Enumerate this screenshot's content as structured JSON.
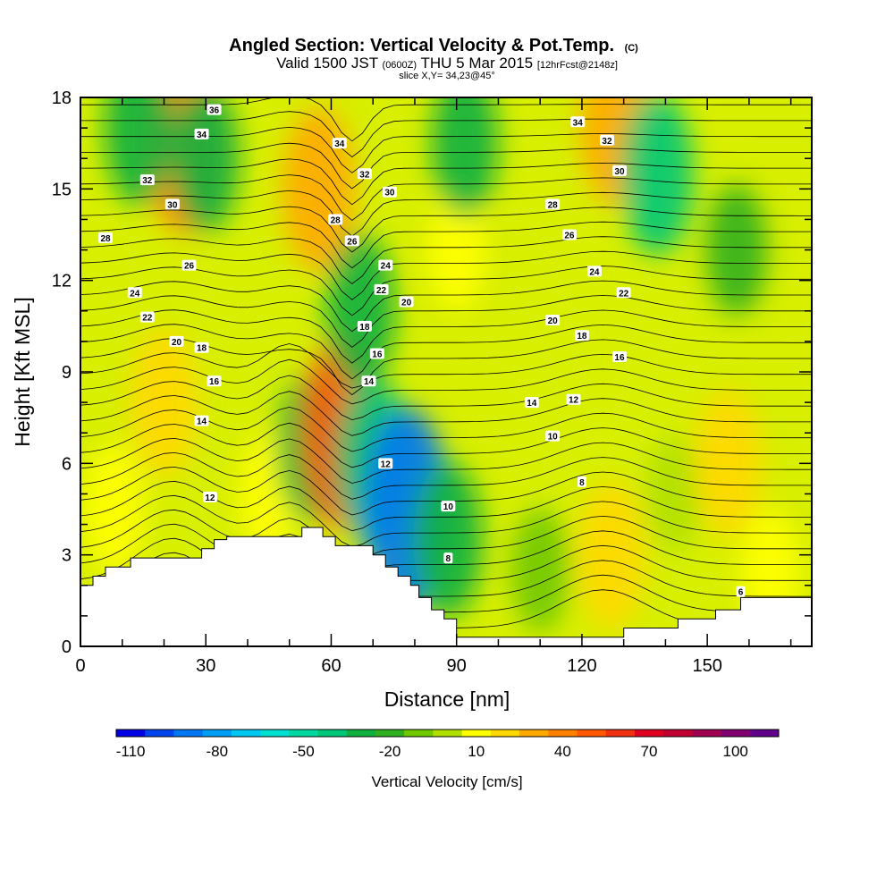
{
  "chart_data": {
    "type": "heatmap",
    "title": "Angled Section: Vertical Velocity & Pot.Temp.",
    "title_suffix": "(C)",
    "subtitle": {
      "part1": "Valid 1500 JST",
      "part2": "(0600Z)",
      "part3": "THU 5 Mar 2015",
      "part4": "[12hrFcst@2148z]"
    },
    "subtitle2": "slice X,Y= 34,23@45°",
    "xlabel": "Distance [nm]",
    "ylabel": "Height [Kft MSL]",
    "xlim": [
      0,
      175
    ],
    "ylim": [
      0,
      18
    ],
    "xticks": [
      0,
      30,
      60,
      90,
      120,
      150
    ],
    "yticks": [
      0,
      3,
      6,
      9,
      12,
      15,
      18
    ],
    "colorbar": {
      "label": "Vertical Velocity [cm/s]",
      "ticks": [
        "-110",
        "-80",
        "-50",
        "-20",
        "10",
        "40",
        "70",
        "100"
      ],
      "levels": [
        -110,
        -100,
        -90,
        -80,
        -70,
        -60,
        -50,
        -40,
        -30,
        -20,
        -10,
        0,
        10,
        20,
        30,
        40,
        50,
        60,
        70,
        80,
        90,
        100,
        110
      ],
      "colors": [
        "#0000e6",
        "#0044ee",
        "#0077f2",
        "#009ff5",
        "#00c8f0",
        "#00e0d0",
        "#00d8a0",
        "#00c878",
        "#10b040",
        "#30b020",
        "#70c800",
        "#b0e000",
        "#ffff00",
        "#ffd800",
        "#ffa800",
        "#ff8000",
        "#ff5800",
        "#f03010",
        "#e00020",
        "#c00030",
        "#a00050",
        "#800070",
        "#60008a"
      ]
    },
    "terrain_kft": [
      [
        0,
        2.0
      ],
      [
        3,
        2.0
      ],
      [
        3,
        2.3
      ],
      [
        6,
        2.3
      ],
      [
        6,
        2.6
      ],
      [
        12,
        2.6
      ],
      [
        12,
        2.9
      ],
      [
        29,
        2.9
      ],
      [
        29,
        3.2
      ],
      [
        32,
        3.2
      ],
      [
        32,
        3.5
      ],
      [
        35,
        3.5
      ],
      [
        35,
        3.6
      ],
      [
        53,
        3.6
      ],
      [
        53,
        3.9
      ],
      [
        58,
        3.9
      ],
      [
        58,
        3.6
      ],
      [
        61,
        3.6
      ],
      [
        61,
        3.3
      ],
      [
        70,
        3.3
      ],
      [
        70,
        3.0
      ],
      [
        73,
        3.0
      ],
      [
        73,
        2.6
      ],
      [
        76,
        2.6
      ],
      [
        76,
        2.3
      ],
      [
        79,
        2.3
      ],
      [
        79,
        2.0
      ],
      [
        81,
        2.0
      ],
      [
        81,
        1.6
      ],
      [
        84,
        1.6
      ],
      [
        84,
        1.2
      ],
      [
        87,
        1.2
      ],
      [
        87,
        0.9
      ],
      [
        90,
        0.9
      ],
      [
        90,
        0.3
      ],
      [
        97,
        0.3
      ],
      [
        97,
        0.3
      ],
      [
        130,
        0.3
      ],
      [
        130,
        0.6
      ],
      [
        143,
        0.6
      ],
      [
        143,
        0.9
      ],
      [
        152,
        0.9
      ],
      [
        152,
        1.2
      ],
      [
        158,
        1.2
      ],
      [
        158,
        1.6
      ],
      [
        175,
        1.6
      ]
    ],
    "vertical_velocity_field": [
      {
        "x": 8,
        "y": 4.5,
        "v": 15
      },
      {
        "x": 20,
        "y": 8.0,
        "v": 25
      },
      {
        "x": 25,
        "y": 16.5,
        "v": 45
      },
      {
        "x": 30,
        "y": 16.0,
        "v": -25
      },
      {
        "x": 14,
        "y": 17.0,
        "v": -30
      },
      {
        "x": 45,
        "y": 5.0,
        "v": 10
      },
      {
        "x": 55,
        "y": 6.5,
        "v": -25
      },
      {
        "x": 57,
        "y": 15.0,
        "v": 35
      },
      {
        "x": 63,
        "y": 7.0,
        "v": 55
      },
      {
        "x": 67,
        "y": 11.0,
        "v": -30
      },
      {
        "x": 70,
        "y": 6.0,
        "v": -40
      },
      {
        "x": 78,
        "y": 4.5,
        "v": -90
      },
      {
        "x": 88,
        "y": 3.5,
        "v": -30
      },
      {
        "x": 90,
        "y": 13.0,
        "v": 10
      },
      {
        "x": 92,
        "y": 16.5,
        "v": -25
      },
      {
        "x": 110,
        "y": 2.5,
        "v": -10
      },
      {
        "x": 127,
        "y": 3.0,
        "v": 25
      },
      {
        "x": 128,
        "y": 17.0,
        "v": 30
      },
      {
        "x": 138,
        "y": 15.5,
        "v": -35
      },
      {
        "x": 142,
        "y": 5.0,
        "v": 5
      },
      {
        "x": 155,
        "y": 6.0,
        "v": 25
      },
      {
        "x": 157,
        "y": 13.0,
        "v": -15
      },
      {
        "x": 165,
        "y": 2.5,
        "v": 10
      }
    ],
    "isentrope_labels": [
      {
        "text": "36",
        "x": 32,
        "y": 17.6
      },
      {
        "text": "34",
        "x": 29,
        "y": 16.8
      },
      {
        "text": "34",
        "x": 62,
        "y": 16.5
      },
      {
        "text": "34",
        "x": 119,
        "y": 17.2
      },
      {
        "text": "32",
        "x": 16,
        "y": 15.3
      },
      {
        "text": "32",
        "x": 68,
        "y": 15.5
      },
      {
        "text": "32",
        "x": 126,
        "y": 16.6
      },
      {
        "text": "30",
        "x": 22,
        "y": 14.5
      },
      {
        "text": "30",
        "x": 74,
        "y": 14.9
      },
      {
        "text": "30",
        "x": 129,
        "y": 15.6
      },
      {
        "text": "28",
        "x": 6,
        "y": 13.4
      },
      {
        "text": "28",
        "x": 61,
        "y": 14.0
      },
      {
        "text": "28",
        "x": 113,
        "y": 14.5
      },
      {
        "text": "26",
        "x": 26,
        "y": 12.5
      },
      {
        "text": "26",
        "x": 65,
        "y": 13.3
      },
      {
        "text": "26",
        "x": 117,
        "y": 13.5
      },
      {
        "text": "24",
        "x": 13,
        "y": 11.6
      },
      {
        "text": "24",
        "x": 73,
        "y": 12.5
      },
      {
        "text": "24",
        "x": 123,
        "y": 12.3
      },
      {
        "text": "22",
        "x": 16,
        "y": 10.8
      },
      {
        "text": "22",
        "x": 72,
        "y": 11.7
      },
      {
        "text": "22",
        "x": 130,
        "y": 11.6
      },
      {
        "text": "20",
        "x": 23,
        "y": 10.0
      },
      {
        "text": "20",
        "x": 78,
        "y": 11.3
      },
      {
        "text": "20",
        "x": 113,
        "y": 10.7
      },
      {
        "text": "18",
        "x": 29,
        "y": 9.8
      },
      {
        "text": "18",
        "x": 68,
        "y": 10.5
      },
      {
        "text": "18",
        "x": 120,
        "y": 10.2
      },
      {
        "text": "16",
        "x": 32,
        "y": 8.7
      },
      {
        "text": "16",
        "x": 71,
        "y": 9.6
      },
      {
        "text": "16",
        "x": 129,
        "y": 9.5
      },
      {
        "text": "14",
        "x": 29,
        "y": 7.4
      },
      {
        "text": "14",
        "x": 69,
        "y": 8.7
      },
      {
        "text": "14",
        "x": 108,
        "y": 8.0
      },
      {
        "text": "12",
        "x": 31,
        "y": 4.9
      },
      {
        "text": "12",
        "x": 73,
        "y": 6.0
      },
      {
        "text": "12",
        "x": 118,
        "y": 8.1
      },
      {
        "text": "10",
        "x": 88,
        "y": 4.6
      },
      {
        "text": "10",
        "x": 113,
        "y": 6.9
      },
      {
        "text": "8",
        "x": 88,
        "y": 2.9
      },
      {
        "text": "8",
        "x": 120,
        "y": 5.4
      },
      {
        "text": "6",
        "x": 158,
        "y": 1.8
      }
    ]
  }
}
